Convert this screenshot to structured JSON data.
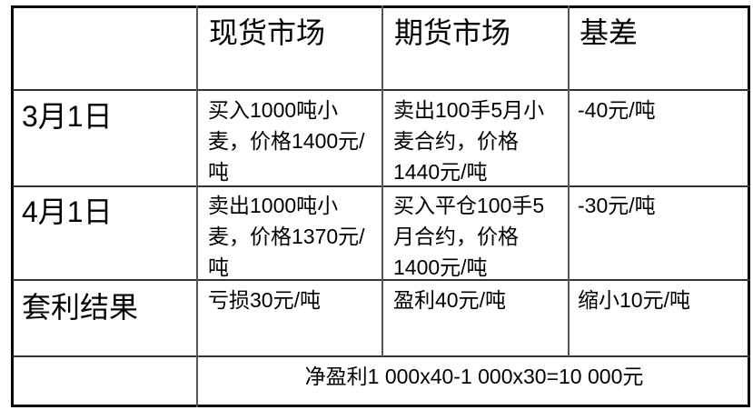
{
  "header": [
    "",
    "现货市场",
    "期货市场",
    "基差"
  ],
  "rows": [
    {
      "label": "3月1日",
      "spot": "买入1000吨小麦，价格1400元/吨",
      "futures": "卖出100手5月小麦合约，价格1440元/吨",
      "basis": "-40元/吨"
    },
    {
      "label": "4月1日",
      "spot": "卖出1000吨小麦，价格1370元/吨",
      "futures": "买入平仓100手5月合约，价格1400元/吨",
      "basis": "-30元/吨"
    },
    {
      "label": "套利结果",
      "spot": "亏损30元/吨",
      "futures": "盈利40元/吨",
      "basis": "缩小10元/吨"
    }
  ],
  "summary": "净盈利1 000x40-1 000x30=10 000元"
}
